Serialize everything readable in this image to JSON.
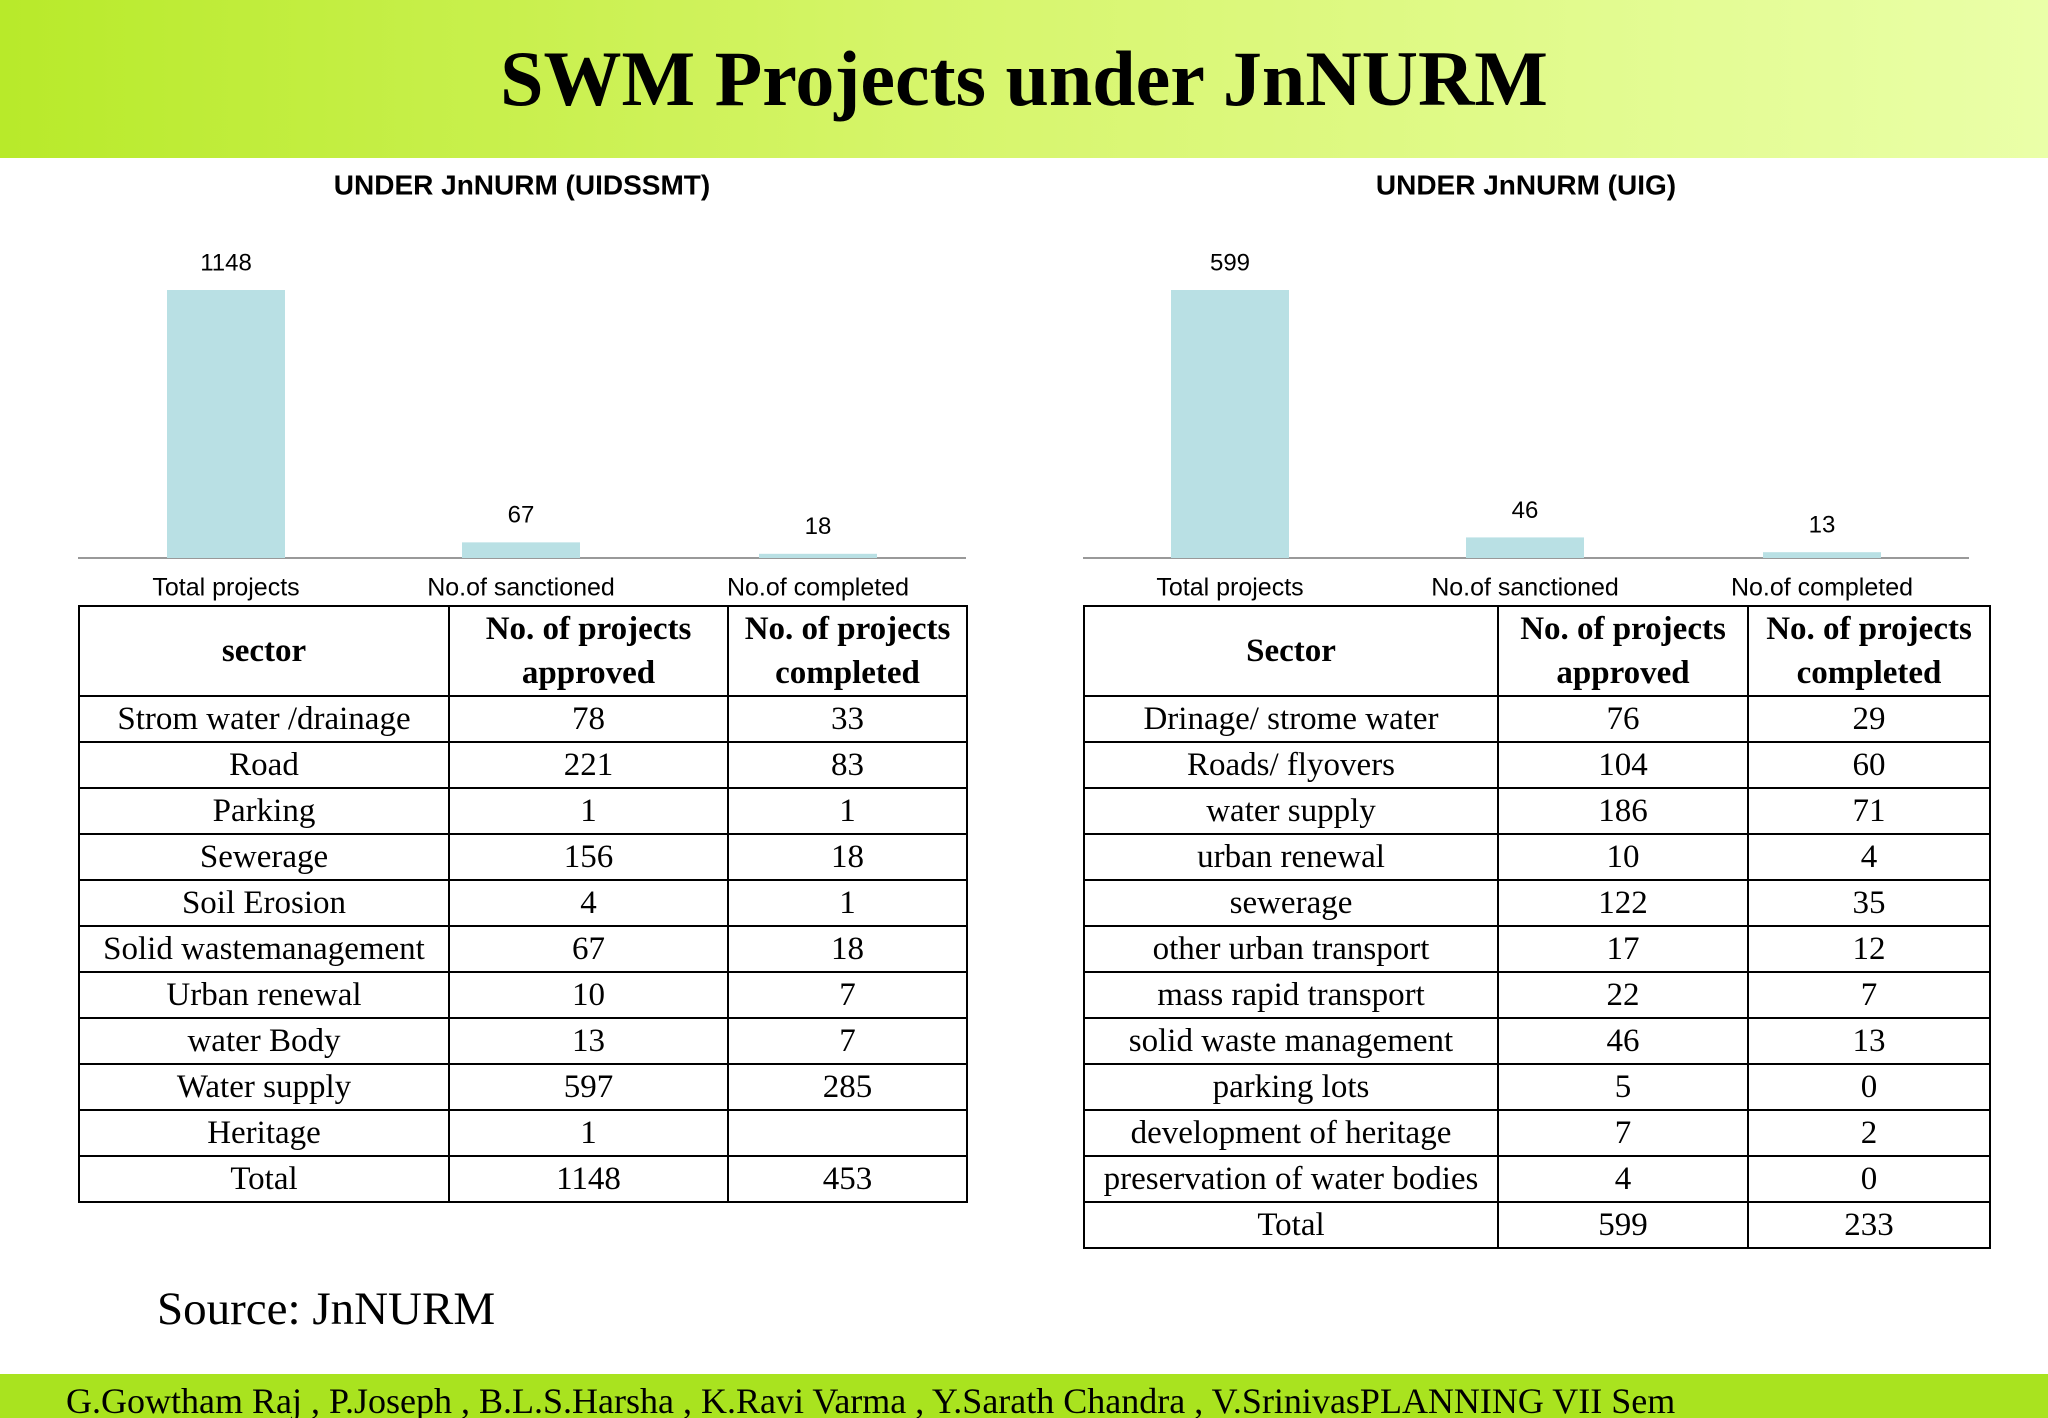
{
  "header": {
    "title": "SWM Projects under JnNURM"
  },
  "chart_data": [
    {
      "type": "bar",
      "title": "UNDER JnNURM (UIDSSMT)",
      "categories": [
        "Total projects",
        "No.of sanctioned",
        "No.of completed"
      ],
      "values": [
        1148,
        67,
        18
      ],
      "color": "#b9e0e4"
    },
    {
      "type": "bar",
      "title": "UNDER JnNURM (UIG)",
      "categories": [
        "Total projects",
        "No.of sanctioned",
        "No.of completed"
      ],
      "values": [
        599,
        46,
        13
      ],
      "color": "#b9e0e4"
    }
  ],
  "tables": [
    {
      "columns": [
        "sector",
        "No. of projects approved",
        "No. of projects completed"
      ],
      "rows": [
        [
          "Strom water /drainage",
          78,
          33
        ],
        [
          "Road",
          221,
          83
        ],
        [
          "Parking",
          1,
          1
        ],
        [
          "Sewerage",
          156,
          18
        ],
        [
          "Soil Erosion",
          4,
          1
        ],
        [
          "Solid wastemanagement",
          67,
          18
        ],
        [
          "Urban renewal",
          10,
          7
        ],
        [
          "water Body",
          13,
          7
        ],
        [
          "Water supply",
          597,
          285
        ],
        [
          "Heritage",
          1,
          null
        ],
        [
          "Total",
          1148,
          453
        ]
      ]
    },
    {
      "columns": [
        "Sector",
        "No. of projects approved",
        "No. of projects completed"
      ],
      "rows": [
        [
          "Drinage/ strome water",
          76,
          29
        ],
        [
          "Roads/ flyovers",
          104,
          60
        ],
        [
          "water supply",
          186,
          71
        ],
        [
          "urban renewal",
          10,
          4
        ],
        [
          "sewerage",
          122,
          35
        ],
        [
          "other urban transport",
          17,
          12
        ],
        [
          "mass rapid transport",
          22,
          7
        ],
        [
          "solid waste management",
          46,
          13
        ],
        [
          "parking lots",
          5,
          0
        ],
        [
          "development of heritage",
          7,
          2
        ],
        [
          "preservation of water bodies",
          4,
          0
        ],
        [
          "Total",
          599,
          233
        ]
      ]
    }
  ],
  "source": "Source: JnNURM",
  "footer": "G.Gowtham Raj , P.Joseph , B.L.S.Harsha , K.Ravi Varma , Y.Sarath Chandra , V.SrinivasPLANNING VII Sem"
}
